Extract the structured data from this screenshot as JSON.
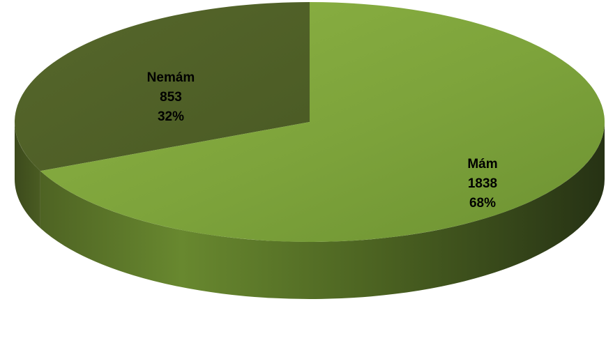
{
  "chart_data": {
    "type": "pie",
    "style": "3d",
    "slices": [
      {
        "label": "Nemám",
        "value": 853,
        "percent": "32%",
        "color": "#4f5f27"
      },
      {
        "label": "Mám",
        "value": 1838,
        "percent": "68%",
        "color": "#80a63b"
      }
    ]
  }
}
